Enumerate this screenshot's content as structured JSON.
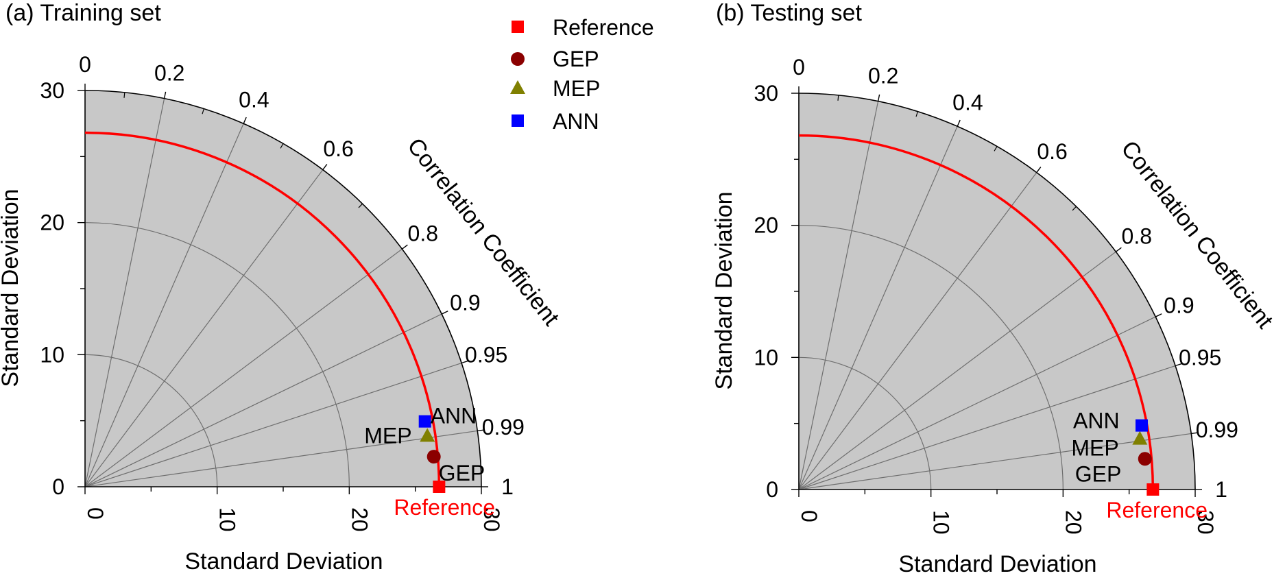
{
  "legend": {
    "items": [
      {
        "label": "Reference",
        "marker": "square",
        "color": "#ff0000"
      },
      {
        "label": "GEP",
        "marker": "circle",
        "color": "#8b0000"
      },
      {
        "label": "MEP",
        "marker": "triangle",
        "color": "#808000"
      },
      {
        "label": "ANN",
        "marker": "square",
        "color": "#0000ff"
      }
    ]
  },
  "chart_data": [
    {
      "type": "scatter",
      "subtype": "taylor-diagram",
      "title": "(a) Training set",
      "xlabel": "Standard Deviation",
      "ylabel": "Standard Deviation",
      "arc_label": "Correlation Coefficient",
      "std_range": [
        0,
        30
      ],
      "std_ticks": [
        "0",
        "10",
        "20",
        "30"
      ],
      "corr_ticks": [
        "0",
        "0.2",
        "0.4",
        "0.6",
        "0.8",
        "0.9",
        "0.95",
        "0.99",
        "1"
      ],
      "reference_std": 26.8,
      "points": [
        {
          "name": "Reference",
          "label": "Reference",
          "std": 26.8,
          "corr": 1.0,
          "marker": "square",
          "color": "#ff0000",
          "label_color": "#ff0000"
        },
        {
          "name": "GEP",
          "label": "GEP",
          "std": 26.5,
          "corr": 0.9963,
          "marker": "circle",
          "color": "#8b0000",
          "label_color": "#000000"
        },
        {
          "name": "MEP",
          "label": "MEP",
          "std": 26.2,
          "corr": 0.989,
          "marker": "triangle",
          "color": "#808000",
          "label_color": "#000000"
        },
        {
          "name": "ANN",
          "label": "ANN",
          "std": 26.2,
          "corr": 0.982,
          "marker": "square",
          "color": "#0000ff",
          "label_color": "#000000"
        }
      ]
    },
    {
      "type": "scatter",
      "subtype": "taylor-diagram",
      "title": "(b) Testing set",
      "xlabel": "Standard Deviation",
      "ylabel": "Standard Deviation",
      "arc_label": "Correlation Coefficient",
      "std_range": [
        0,
        30
      ],
      "std_ticks": [
        "0",
        "10",
        "20",
        "30"
      ],
      "corr_ticks": [
        "0",
        "0.2",
        "0.4",
        "0.6",
        "0.8",
        "0.9",
        "0.95",
        "0.99",
        "1"
      ],
      "reference_std": 26.8,
      "points": [
        {
          "name": "Reference",
          "label": "Reference",
          "std": 26.8,
          "corr": 1.0,
          "marker": "square",
          "color": "#ff0000",
          "label_color": "#ff0000"
        },
        {
          "name": "GEP",
          "label": "GEP",
          "std": 26.3,
          "corr": 0.9961,
          "marker": "circle",
          "color": "#8b0000",
          "label_color": "#000000"
        },
        {
          "name": "MEP",
          "label": "MEP",
          "std": 26.1,
          "corr": 0.989,
          "marker": "triangle",
          "color": "#808000",
          "label_color": "#000000"
        },
        {
          "name": "ANN",
          "label": "ANN",
          "std": 26.4,
          "corr": 0.983,
          "marker": "square",
          "color": "#0000ff",
          "label_color": "#000000"
        }
      ]
    }
  ]
}
